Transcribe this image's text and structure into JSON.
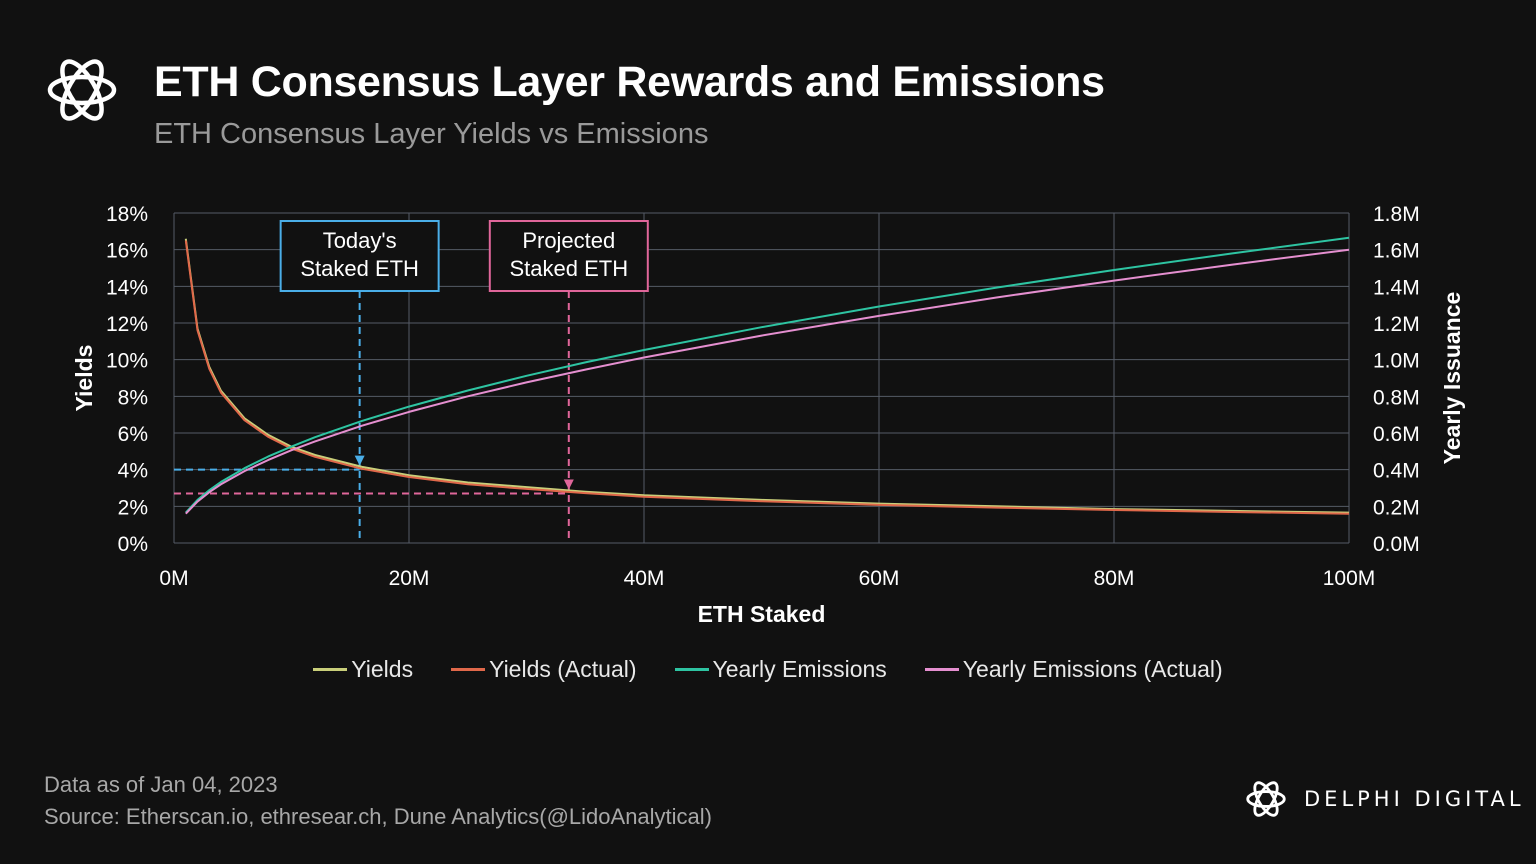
{
  "title": "ETH Consensus Layer Rewards and Emissions",
  "subtitle": "ETH Consensus Layer Yields vs Emissions",
  "footer": {
    "date_note": "Data as of Jan 04, 2023",
    "source_note": "Source: Etherscan.io, ethresear.ch, Dune Analytics(@LidoAnalytical)"
  },
  "brand": {
    "name": "DELPHI DIGITAL"
  },
  "colors": {
    "background": "#111111",
    "grid": "#555b66",
    "yields": "#c9cf7a",
    "yields_actual": "#e0684a",
    "yearly_emissions": "#2ec4a2",
    "yearly_emissions_actual": "#e58fd0",
    "today_marker": "#4aaee8",
    "projected_marker": "#e0669a"
  },
  "chart_data": {
    "type": "line",
    "xlabel": "ETH Staked",
    "ylabel": "Yields",
    "y2label": "Yearly Issuance",
    "xlim": [
      0,
      100
    ],
    "ylim": [
      0,
      18
    ],
    "y2lim": [
      0,
      1.8
    ],
    "x_ticks": [
      "0M",
      "20M",
      "40M",
      "60M",
      "80M",
      "100M"
    ],
    "y_ticks": [
      "0%",
      "2%",
      "4%",
      "6%",
      "8%",
      "10%",
      "12%",
      "14%",
      "16%",
      "18%"
    ],
    "y2_ticks": [
      "0.0M",
      "0.2M",
      "0.4M",
      "0.6M",
      "0.8M",
      "1.0M",
      "1.2M",
      "1.4M",
      "1.6M",
      "1.8M"
    ],
    "grid": true,
    "legend_position": "bottom",
    "series": [
      {
        "name": "Yields",
        "axis": "left",
        "color_key": "yields",
        "x": [
          1,
          2,
          3,
          4,
          6,
          8,
          10,
          12,
          16,
          20,
          25,
          30,
          35,
          40,
          50,
          60,
          70,
          80,
          90,
          100
        ],
        "y": [
          16.6,
          11.7,
          9.6,
          8.3,
          6.8,
          5.9,
          5.25,
          4.8,
          4.15,
          3.7,
          3.3,
          3.05,
          2.8,
          2.6,
          2.35,
          2.15,
          2.0,
          1.85,
          1.75,
          1.66
        ]
      },
      {
        "name": "Yields (Actual)",
        "axis": "left",
        "color_key": "yields_actual",
        "x": [
          1,
          2,
          3,
          4,
          6,
          8,
          10,
          12,
          16,
          20,
          25,
          30,
          35,
          40,
          50,
          60,
          70,
          80,
          90,
          100
        ],
        "y": [
          16.5,
          11.6,
          9.5,
          8.2,
          6.7,
          5.8,
          5.15,
          4.7,
          4.05,
          3.6,
          3.2,
          2.95,
          2.72,
          2.52,
          2.28,
          2.08,
          1.93,
          1.8,
          1.69,
          1.6
        ]
      },
      {
        "name": "Yearly Emissions",
        "axis": "right",
        "color_key": "yearly_emissions",
        "x": [
          1,
          2,
          3,
          4,
          6,
          8,
          10,
          12,
          16,
          20,
          25,
          30,
          35,
          40,
          50,
          60,
          70,
          80,
          90,
          100
        ],
        "y": [
          0.166,
          0.235,
          0.288,
          0.333,
          0.408,
          0.471,
          0.526,
          0.577,
          0.666,
          0.744,
          0.832,
          0.912,
          0.985,
          1.053,
          1.177,
          1.29,
          1.393,
          1.489,
          1.579,
          1.665
        ]
      },
      {
        "name": "Yearly Emissions (Actual)",
        "axis": "right",
        "color_key": "yearly_emissions_actual",
        "x": [
          1,
          2,
          3,
          4,
          6,
          8,
          10,
          12,
          16,
          20,
          25,
          30,
          35,
          40,
          50,
          60,
          70,
          80,
          90,
          100
        ],
        "y": [
          0.16,
          0.226,
          0.277,
          0.32,
          0.392,
          0.452,
          0.506,
          0.554,
          0.64,
          0.715,
          0.8,
          0.876,
          0.946,
          1.012,
          1.131,
          1.239,
          1.339,
          1.431,
          1.518,
          1.6
        ]
      }
    ],
    "annotations": [
      {
        "label_lines": [
          "Today's",
          "Staked ETH"
        ],
        "x": 15.8,
        "y": 4.0,
        "color_key": "today_marker"
      },
      {
        "label_lines": [
          "Projected",
          "Staked ETH"
        ],
        "x": 33.6,
        "y": 2.7,
        "color_key": "projected_marker"
      }
    ]
  }
}
